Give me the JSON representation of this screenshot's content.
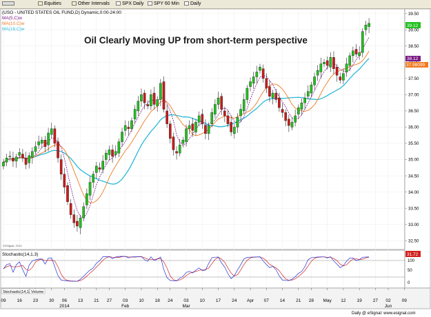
{
  "toolbar": {
    "items": [
      {
        "label": "",
        "icon": "nav-arrows-icon"
      },
      {
        "label": "Equities",
        "icon": "folder-icon"
      },
      {
        "label": "Other Intervals",
        "icon": "folder-icon"
      },
      {
        "label": "SPX Daily",
        "icon": "chart-icon"
      },
      {
        "label": "SPY 60 Min",
        "icon": "chart-icon"
      },
      {
        "label": "Daily",
        "icon": "chart-icon"
      }
    ]
  },
  "chart_header": {
    "symbol_line": "(USO - UNITED STATES OIL FUND,D) Dynamic,0:00-24:00",
    "ma_labels": [
      "MA(5,C)w",
      "MA(10,C)w",
      "MA(18,C)w"
    ]
  },
  "colors": {
    "up": "#21c21e",
    "down": "#cc1a1a",
    "ma5": "#7a1a86",
    "ma10": "#f07a20",
    "ma18": "#2ab8d8",
    "stoch_k": "#2030d0",
    "stoch_d": "#d02020"
  },
  "annotation": "Oil Clearly Moving UP from short-term perspective",
  "copyright_small": "©eSignal, 2014",
  "price_tags": [
    "39.12",
    "38.12",
    "37.98099"
  ],
  "stoch": {
    "title": "Stochastic(14,1,3)",
    "value_tag": "31.72",
    "y_ticks": [
      "100",
      "50",
      "0"
    ],
    "tabs": [
      "Stochastic(14,1,3)",
      "Volume"
    ]
  },
  "x_labels": [
    {
      "text": "09",
      "i": 0
    },
    {
      "text": "16",
      "i": 5
    },
    {
      "text": "23",
      "i": 10
    },
    {
      "text": "30",
      "i": 15
    },
    {
      "text": "06",
      "i": 19
    },
    {
      "text": "13",
      "i": 24
    },
    {
      "text": "21",
      "i": 29
    },
    {
      "text": "27",
      "i": 33
    },
    {
      "text": "03",
      "i": 38
    },
    {
      "text": "10",
      "i": 43
    },
    {
      "text": "18",
      "i": 48
    },
    {
      "text": "24",
      "i": 52
    },
    {
      "text": "03",
      "i": 57
    },
    {
      "text": "10",
      "i": 62
    },
    {
      "text": "17",
      "i": 67
    },
    {
      "text": "24",
      "i": 72
    },
    {
      "text": "Apr",
      "i": 77
    },
    {
      "text": "07",
      "i": 82
    },
    {
      "text": "14",
      "i": 87
    },
    {
      "text": "21",
      "i": 92
    },
    {
      "text": "28",
      "i": 96
    },
    {
      "text": "May",
      "i": 101
    },
    {
      "text": "12",
      "i": 106
    },
    {
      "text": "19",
      "i": 111
    },
    {
      "text": "27",
      "i": 116
    },
    {
      "text": "02",
      "i": 120
    },
    {
      "text": "09",
      "i": 125
    }
  ],
  "x_labels_row2": [
    {
      "text": "2014",
      "i": 19
    },
    {
      "text": "Feb",
      "i": 38
    },
    {
      "text": "Mar",
      "i": 57
    },
    {
      "text": "Jun",
      "i": 120
    }
  ],
  "footer": "Daily @ eSignal: www.esignal.com",
  "chart_data": {
    "type": "candlestick",
    "title": "(USO - UNITED STATES OIL FUND,D) Dynamic,0:00-24:00",
    "ylim": [
      32.25,
      39.6
    ],
    "y_ticks": [
      32.5,
      33.0,
      33.5,
      34.0,
      34.5,
      35.0,
      35.5,
      36.0,
      36.5,
      37.0,
      37.5,
      38.0,
      38.5,
      39.0,
      39.5
    ],
    "closes": [
      34.92,
      35.05,
      35.1,
      34.95,
      35.08,
      35.22,
      35.05,
      34.85,
      35.12,
      35.25,
      35.4,
      35.55,
      35.6,
      35.4,
      35.82,
      35.95,
      35.5,
      35.05,
      34.55,
      34.15,
      33.7,
      33.3,
      33.05,
      32.95,
      33.2,
      33.55,
      33.95,
      34.3,
      34.55,
      34.8,
      34.7,
      34.95,
      35.2,
      35.3,
      35.1,
      35.25,
      35.55,
      35.85,
      36.05,
      35.95,
      36.2,
      36.55,
      36.8,
      37.0,
      36.75,
      36.65,
      37.0,
      36.7,
      36.85,
      37.35,
      36.55,
      36.1,
      35.65,
      35.3,
      35.2,
      35.45,
      35.6,
      35.95,
      36.05,
      35.9,
      36.15,
      36.35,
      36.1,
      35.8,
      36.05,
      36.45,
      36.7,
      36.9,
      36.55,
      36.35,
      36.1,
      35.85,
      36.0,
      36.3,
      36.55,
      36.85,
      37.2,
      37.4,
      37.55,
      37.7,
      37.85,
      37.5,
      37.2,
      36.95,
      37.05,
      36.85,
      36.6,
      36.45,
      36.2,
      36.05,
      36.15,
      36.35,
      36.6,
      36.75,
      36.9,
      37.1,
      37.3,
      37.55,
      37.75,
      37.95,
      38.0,
      37.9,
      38.15,
      37.8,
      37.6,
      37.45,
      37.65,
      37.95,
      38.2,
      38.35,
      38.25,
      38.3,
      38.95,
      39.15,
      39.2
    ]
  }
}
